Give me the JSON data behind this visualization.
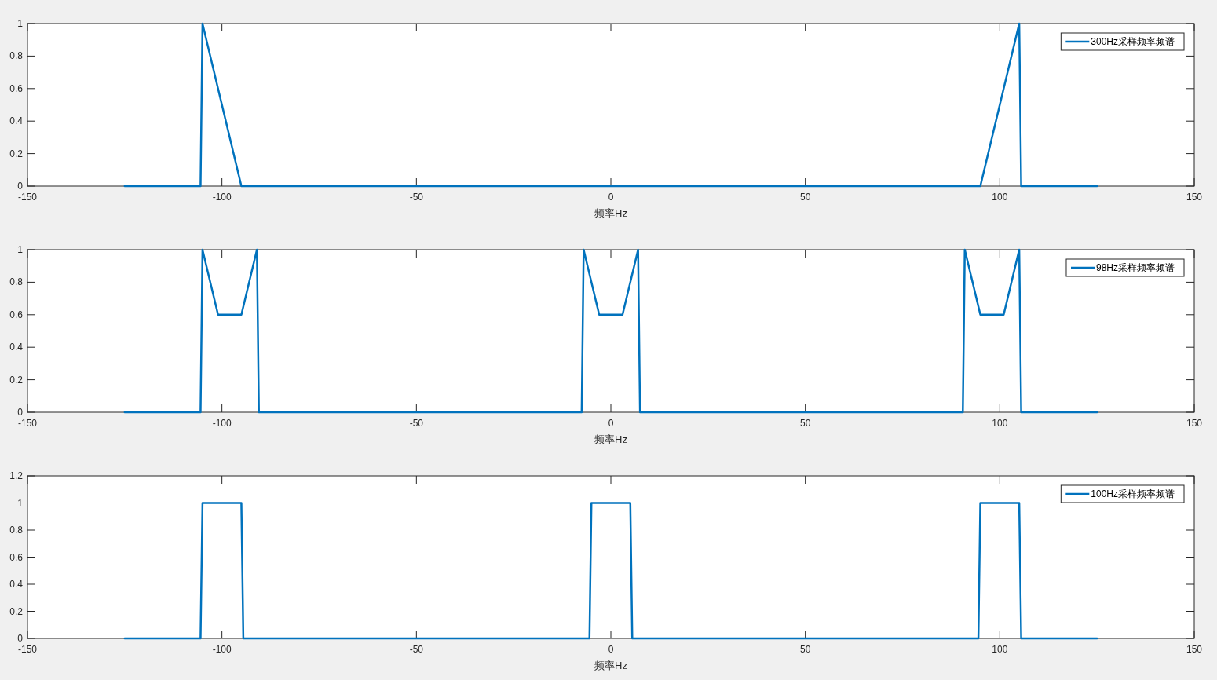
{
  "chart_data": [
    {
      "type": "line",
      "xlabel": "频率Hz",
      "xlim": [
        -150,
        150
      ],
      "xticks": [
        -150,
        -100,
        -50,
        0,
        50,
        100,
        150
      ],
      "ylim": [
        0,
        1
      ],
      "yticks": [
        0,
        0.2,
        0.4,
        0.6,
        0.8,
        1
      ],
      "legend": "top right",
      "line_style": "solid",
      "series": [
        {
          "name": "300Hz采样频率频谱",
          "color": "#0072bd",
          "x": [
            -125,
            -105.5,
            -105,
            -95,
            95,
            105,
            105.5,
            125
          ],
          "values": [
            0,
            0,
            1,
            0,
            0,
            1,
            0,
            0
          ]
        }
      ]
    },
    {
      "type": "line",
      "xlabel": "频率Hz",
      "xlim": [
        -150,
        150
      ],
      "xticks": [
        -150,
        -100,
        -50,
        0,
        50,
        100,
        150
      ],
      "ylim": [
        0,
        1
      ],
      "yticks": [
        0,
        0.2,
        0.4,
        0.6,
        0.8,
        1
      ],
      "legend": "top right",
      "line_style": "solid",
      "series": [
        {
          "name": "98Hz采样频率频谱",
          "color": "#0072bd",
          "x": [
            -125,
            -105.5,
            -105,
            -101,
            -95,
            -91,
            -90.5,
            -7.5,
            -7,
            -3,
            3,
            7,
            7.5,
            90.5,
            91,
            95,
            101,
            105,
            105.5,
            125
          ],
          "values": [
            0,
            0,
            1,
            0.6,
            0.6,
            1,
            0,
            0,
            1,
            0.6,
            0.6,
            1,
            0,
            0,
            1,
            0.6,
            0.6,
            1,
            0,
            0
          ]
        }
      ]
    },
    {
      "type": "line",
      "xlabel": "频率Hz",
      "xlim": [
        -150,
        150
      ],
      "xticks": [
        -150,
        -100,
        -50,
        0,
        50,
        100,
        150
      ],
      "ylim": [
        0,
        1.2
      ],
      "yticks": [
        0,
        0.2,
        0.4,
        0.6,
        0.8,
        1,
        1.2
      ],
      "legend": "top right",
      "line_style": "solid",
      "series": [
        {
          "name": "100Hz采样频率频谱",
          "color": "#0072bd",
          "x": [
            -125,
            -105.5,
            -105,
            -95,
            -94.5,
            -5.5,
            -5,
            5,
            5.5,
            94.5,
            95,
            105,
            105.5,
            125
          ],
          "values": [
            0,
            0,
            1,
            1,
            0,
            0,
            1,
            1,
            0,
            0,
            1,
            1,
            0,
            0
          ]
        }
      ]
    }
  ]
}
